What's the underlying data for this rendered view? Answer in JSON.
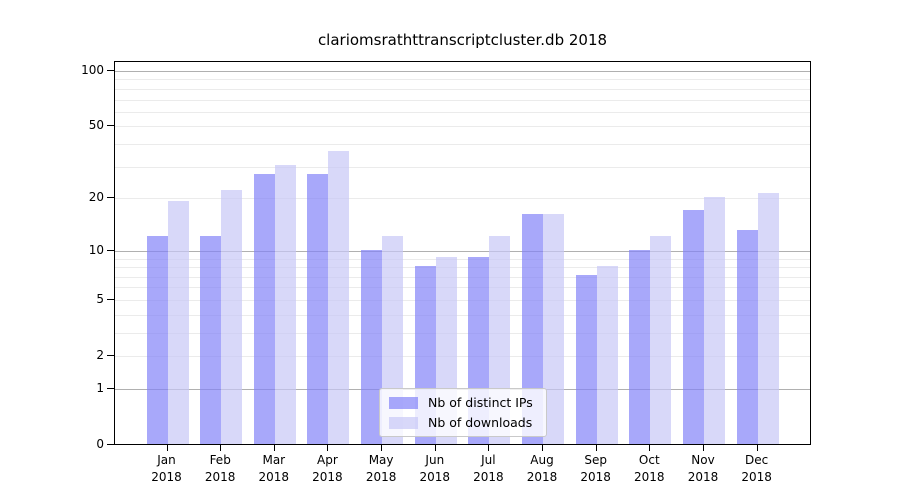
{
  "colors": {
    "ips_bar": "rgba(131,131,248,0.7)",
    "downloads_bar": "rgba(200,200,246,0.7)",
    "grid_major": "#b0b0b0",
    "grid_minor": "#ebebeb",
    "axis": "#000000"
  },
  "chart_data": {
    "type": "bar",
    "title": "clariomsrathttranscriptcluster.db 2018",
    "categories": [
      "Jan 2018",
      "Feb 2018",
      "Mar 2018",
      "Apr 2018",
      "May 2018",
      "Jun 2018",
      "Jul 2018",
      "Aug 2018",
      "Sep 2018",
      "Oct 2018",
      "Nov 2018",
      "Dec 2018"
    ],
    "x_tick_labels": [
      {
        "month": "Jan",
        "year": "2018"
      },
      {
        "month": "Feb",
        "year": "2018"
      },
      {
        "month": "Mar",
        "year": "2018"
      },
      {
        "month": "Apr",
        "year": "2018"
      },
      {
        "month": "May",
        "year": "2018"
      },
      {
        "month": "Jun",
        "year": "2018"
      },
      {
        "month": "Jul",
        "year": "2018"
      },
      {
        "month": "Aug",
        "year": "2018"
      },
      {
        "month": "Sep",
        "year": "2018"
      },
      {
        "month": "Oct",
        "year": "2018"
      },
      {
        "month": "Nov",
        "year": "2018"
      },
      {
        "month": "Dec",
        "year": "2018"
      }
    ],
    "series": [
      {
        "key": "ips",
        "name": "Nb of distinct IPs",
        "color": "rgba(131,131,248,0.7)",
        "values": [
          12,
          12,
          27,
          27,
          10,
          8,
          9,
          16,
          7,
          10,
          17,
          13
        ]
      },
      {
        "key": "downloads",
        "name": "Nb of downloads",
        "color": "rgba(200,200,246,0.7)",
        "values": [
          19,
          22,
          30,
          36,
          12,
          9,
          12,
          16,
          8,
          12,
          20,
          21
        ]
      }
    ],
    "yscale": "log10(1+y)",
    "ylim": [
      0,
      112
    ],
    "yticks": [
      100,
      50,
      20,
      10,
      5,
      2,
      1,
      0
    ],
    "gridlines": {
      "major": [
        100,
        10,
        1
      ],
      "minor": [
        90,
        80,
        70,
        60,
        50,
        40,
        30,
        20,
        9,
        8,
        7,
        6,
        5,
        4,
        3,
        2
      ]
    },
    "grid": true,
    "legend": {
      "position": "lower center",
      "labels": [
        "Nb of distinct IPs",
        "Nb of downloads"
      ]
    }
  }
}
